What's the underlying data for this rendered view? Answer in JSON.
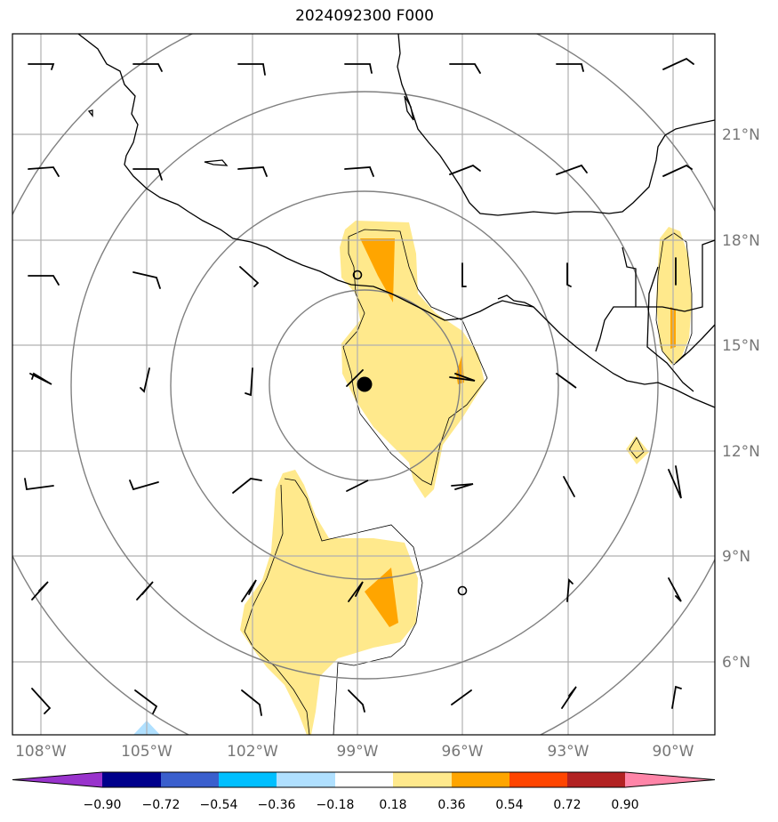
{
  "title": "2024092300 F000",
  "lat_labels": [
    "21°N",
    "18°N",
    "15°N",
    "12°N",
    "9°N",
    "6°N"
  ],
  "lon_labels": [
    "108°W",
    "105°W",
    "102°W",
    "99°W",
    "96°W",
    "93°W",
    "90°W"
  ],
  "colorbar": {
    "ticks": [
      "−0.90",
      "−0.72",
      "−0.54",
      "−0.36",
      "−0.18",
      "0.18",
      "0.36",
      "0.54",
      "0.72",
      "0.90"
    ],
    "colors": [
      "#9933cc",
      "#00008b",
      "#3a5fcd",
      "#00bfff",
      "#b0e0ff",
      "#ffffff",
      "#ffe98c",
      "#ffa500",
      "#ff4500",
      "#b22222",
      "#ff85a8"
    ]
  },
  "colors": {
    "shade_light": "#ffe98c",
    "shade_orange": "#ffa500",
    "rings": "#808080",
    "grid": "#b0b0b0",
    "coast": "#000000"
  }
}
